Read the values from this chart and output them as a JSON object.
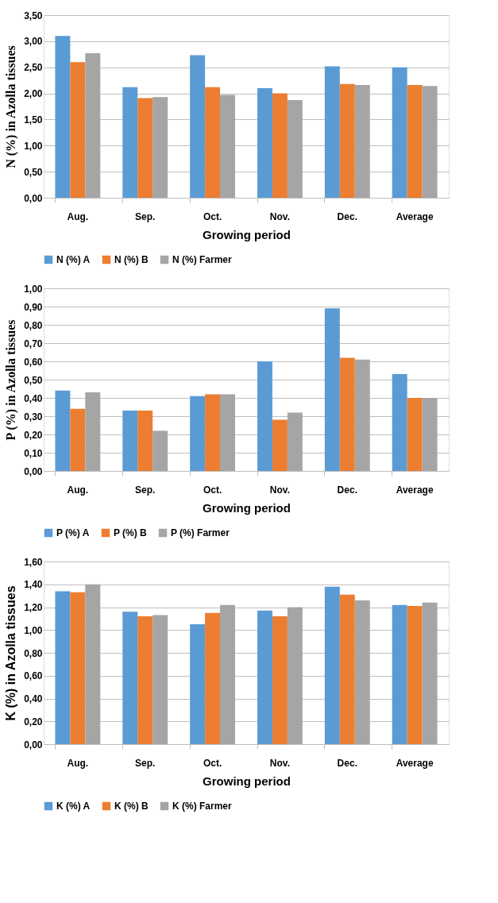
{
  "chart_data": [
    {
      "type": "bar",
      "xlabel": "Growing period",
      "ylabel": "N (%) in Azolla tissues",
      "categories": [
        "Aug.",
        "Sep.",
        "Oct.",
        "Nov.",
        "Dec.",
        "Average"
      ],
      "series": [
        {
          "name": "N (%) A",
          "color": "#5b9bd5",
          "values": [
            3.1,
            2.12,
            2.73,
            2.1,
            2.52,
            2.5
          ]
        },
        {
          "name": "N (%) B",
          "color": "#ed7d31",
          "values": [
            2.6,
            1.91,
            2.12,
            2.0,
            2.18,
            2.16
          ]
        },
        {
          "name": "N (%) Farmer",
          "color": "#a5a5a5",
          "values": [
            2.77,
            1.93,
            1.97,
            1.87,
            2.16,
            2.14
          ]
        }
      ],
      "ylim": [
        0,
        3.5
      ],
      "yticks": [
        {
          "value": 0,
          "label": "0,00"
        },
        {
          "value": 0.5,
          "label": "0,50"
        },
        {
          "value": 1,
          "label": "1,00"
        },
        {
          "value": 1.5,
          "label": "1,50"
        },
        {
          "value": 2,
          "label": "2,00"
        },
        {
          "value": 2.5,
          "label": "2,50"
        },
        {
          "value": 3,
          "label": "3,00"
        },
        {
          "value": 3.5,
          "label": "3,50"
        }
      ],
      "grid": "y",
      "legend": "bottom"
    },
    {
      "type": "bar",
      "xlabel": "Growing period",
      "ylabel": "P (%) in Azolla tissues",
      "categories": [
        "Aug.",
        "Sep.",
        "Oct.",
        "Nov.",
        "Dec.",
        "Average"
      ],
      "series": [
        {
          "name": "P (%) A",
          "color": "#5b9bd5",
          "values": [
            0.44,
            0.33,
            0.41,
            0.6,
            0.89,
            0.53
          ]
        },
        {
          "name": "P (%) B",
          "color": "#ed7d31",
          "values": [
            0.34,
            0.33,
            0.42,
            0.28,
            0.62,
            0.4
          ]
        },
        {
          "name": "P (%) Farmer",
          "color": "#a5a5a5",
          "values": [
            0.43,
            0.22,
            0.42,
            0.32,
            0.61,
            0.4
          ]
        }
      ],
      "ylim": [
        0,
        1
      ],
      "yticks": [
        {
          "value": 0,
          "label": "0,00"
        },
        {
          "value": 0.1,
          "label": "0,10"
        },
        {
          "value": 0.2,
          "label": "0,20"
        },
        {
          "value": 0.3,
          "label": "0,30"
        },
        {
          "value": 0.4,
          "label": "0,40"
        },
        {
          "value": 0.5,
          "label": "0,50"
        },
        {
          "value": 0.6,
          "label": "0,60"
        },
        {
          "value": 0.7,
          "label": "0,70"
        },
        {
          "value": 0.8,
          "label": "0,80"
        },
        {
          "value": 0.9,
          "label": "0,90"
        },
        {
          "value": 1,
          "label": "1,00"
        }
      ],
      "grid": "y",
      "legend": "bottom"
    },
    {
      "type": "bar",
      "xlabel": "Growing period",
      "ylabel": "K (%) in Azolla tissues",
      "categories": [
        "Aug.",
        "Sep.",
        "Oct.",
        "Nov.",
        "Dec.",
        "Average"
      ],
      "series": [
        {
          "name": "K (%) A",
          "color": "#5b9bd5",
          "values": [
            1.34,
            1.16,
            1.05,
            1.17,
            1.38,
            1.22
          ]
        },
        {
          "name": "K (%) B",
          "color": "#ed7d31",
          "values": [
            1.33,
            1.12,
            1.15,
            1.12,
            1.31,
            1.21
          ]
        },
        {
          "name": "K (%) Farmer",
          "color": "#a5a5a5",
          "values": [
            1.4,
            1.13,
            1.22,
            1.2,
            1.26,
            1.24
          ]
        }
      ],
      "ylim": [
        0,
        1.6
      ],
      "yticks": [
        {
          "value": 0,
          "label": "0,00"
        },
        {
          "value": 0.2,
          "label": "0,20"
        },
        {
          "value": 0.4,
          "label": "0,40"
        },
        {
          "value": 0.6,
          "label": "0,60"
        },
        {
          "value": 0.8,
          "label": "0,80"
        },
        {
          "value": 1,
          "label": "1,00"
        },
        {
          "value": 1.2,
          "label": "1,20"
        },
        {
          "value": 1.4,
          "label": "1,40"
        },
        {
          "value": 1.6,
          "label": "1,60"
        }
      ],
      "grid": "y",
      "legend": "bottom"
    }
  ]
}
